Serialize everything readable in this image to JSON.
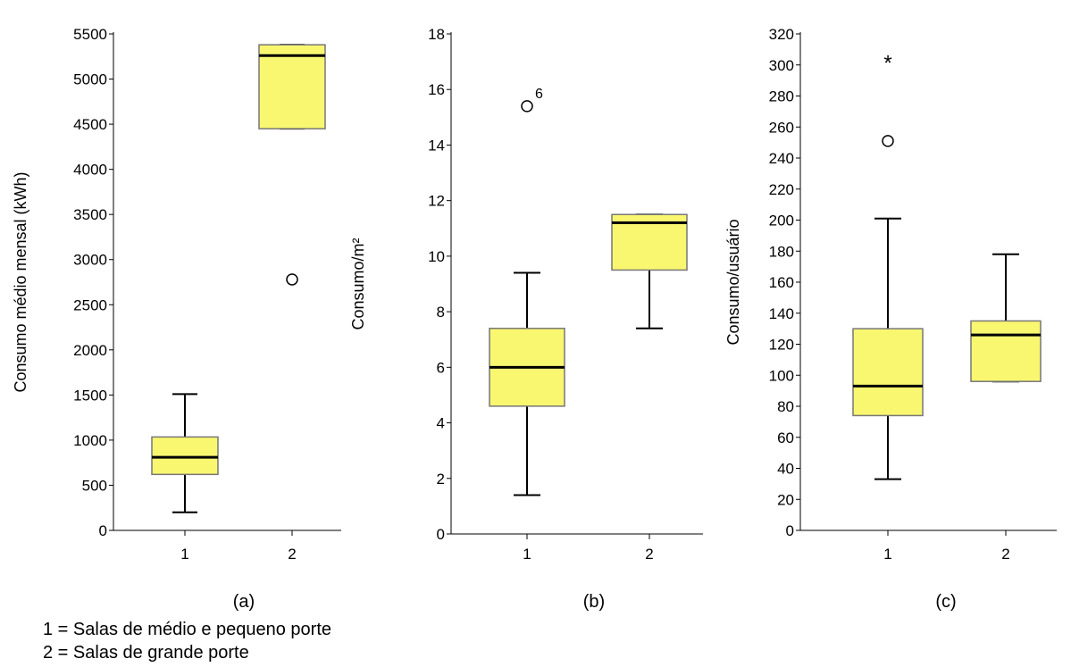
{
  "legend": {
    "line1": "1 = Salas de médio e pequeno porte",
    "line2": "2 = Salas de grande porte"
  },
  "chart_data": [
    {
      "type": "box",
      "panel_label": "(a)",
      "ylabel": "Consumo médio mensal (kWh)",
      "ylim": [
        0,
        5500
      ],
      "yticks": [
        0,
        500,
        1000,
        1500,
        2000,
        2500,
        3000,
        3500,
        4000,
        4500,
        5000,
        5500
      ],
      "categories": [
        "1",
        "2"
      ],
      "colors": {
        "box": "#f9f770",
        "outline": "#777777"
      },
      "boxes": [
        {
          "category": "1",
          "whisker_low": 200,
          "q1": 620,
          "median": 810,
          "q3": 1035,
          "whisker_high": 1510,
          "outliers": []
        },
        {
          "category": "2",
          "whisker_low": 4450,
          "q1": 4450,
          "median": 5260,
          "q3": 5380,
          "whisker_high": 5380,
          "outliers": [
            {
              "value": 2780,
              "marker": "circle",
              "label": ""
            }
          ]
        }
      ]
    },
    {
      "type": "box",
      "panel_label": "(b)",
      "ylabel": "Consumo/m²",
      "ylim": [
        0,
        18
      ],
      "yticks": [
        0,
        2,
        4,
        6,
        8,
        10,
        12,
        14,
        16,
        18
      ],
      "categories": [
        "1",
        "2"
      ],
      "colors": {
        "box": "#f9f770",
        "outline": "#777777"
      },
      "boxes": [
        {
          "category": "1",
          "whisker_low": 1.4,
          "q1": 4.6,
          "median": 6.0,
          "q3": 7.4,
          "whisker_high": 9.4,
          "outliers": [
            {
              "value": 15.4,
              "marker": "circle",
              "label": "6"
            }
          ]
        },
        {
          "category": "2",
          "whisker_low": 7.4,
          "q1": 9.5,
          "median": 11.2,
          "q3": 11.5,
          "whisker_high": 11.5,
          "outliers": []
        }
      ]
    },
    {
      "type": "box",
      "panel_label": "(c)",
      "ylabel": "Consumo/usuário",
      "ylim": [
        0,
        320
      ],
      "yticks": [
        0,
        20,
        40,
        60,
        80,
        100,
        120,
        140,
        160,
        180,
        200,
        220,
        240,
        260,
        280,
        300,
        320
      ],
      "categories": [
        "1",
        "2"
      ],
      "colors": {
        "box": "#f9f770",
        "outline": "#777777"
      },
      "boxes": [
        {
          "category": "1",
          "whisker_low": 33,
          "q1": 74,
          "median": 93,
          "q3": 130,
          "whisker_high": 201,
          "outliers": [
            {
              "value": 251,
              "marker": "circle",
              "label": ""
            },
            {
              "value": 302,
              "marker": "star",
              "label": ""
            }
          ]
        },
        {
          "category": "2",
          "whisker_low": 96,
          "q1": 96,
          "median": 126,
          "q3": 135,
          "whisker_high": 178,
          "outliers": []
        }
      ]
    }
  ]
}
